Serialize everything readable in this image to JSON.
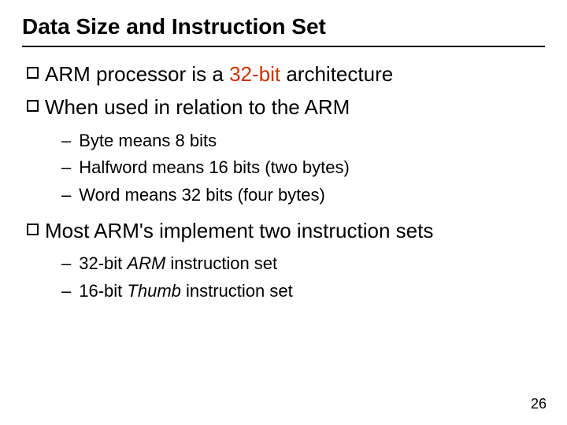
{
  "title": "Data Size and Instruction Set",
  "colors": {
    "text": "#000000",
    "highlight": "#cc3300",
    "background": "#ffffff",
    "rule": "#000000"
  },
  "typography": {
    "title_fontsize": 28,
    "l1_fontsize": 26,
    "l2_fontsize": 22,
    "font_family": "Arial"
  },
  "bullets": [
    {
      "pre": "ARM processor is a ",
      "highlight": "32-bit",
      "post": " architecture",
      "sub": []
    },
    {
      "pre": "When used in relation to the ARM",
      "highlight": "",
      "post": "",
      "sub": [
        {
          "plain": "Byte means 8 bits"
        },
        {
          "plain": "Halfword means 16 bits (two bytes)"
        },
        {
          "plain": "Word means 32 bits (four bytes)"
        }
      ]
    },
    {
      "pre": "Most ARM's implement two instruction sets",
      "highlight": "",
      "post": "",
      "sub": [
        {
          "pre": "32-bit ",
          "italic": "ARM",
          "post": " instruction set"
        },
        {
          "pre": "16-bit ",
          "italic": "Thumb",
          "post": " instruction set"
        }
      ]
    }
  ],
  "page_number": "26"
}
